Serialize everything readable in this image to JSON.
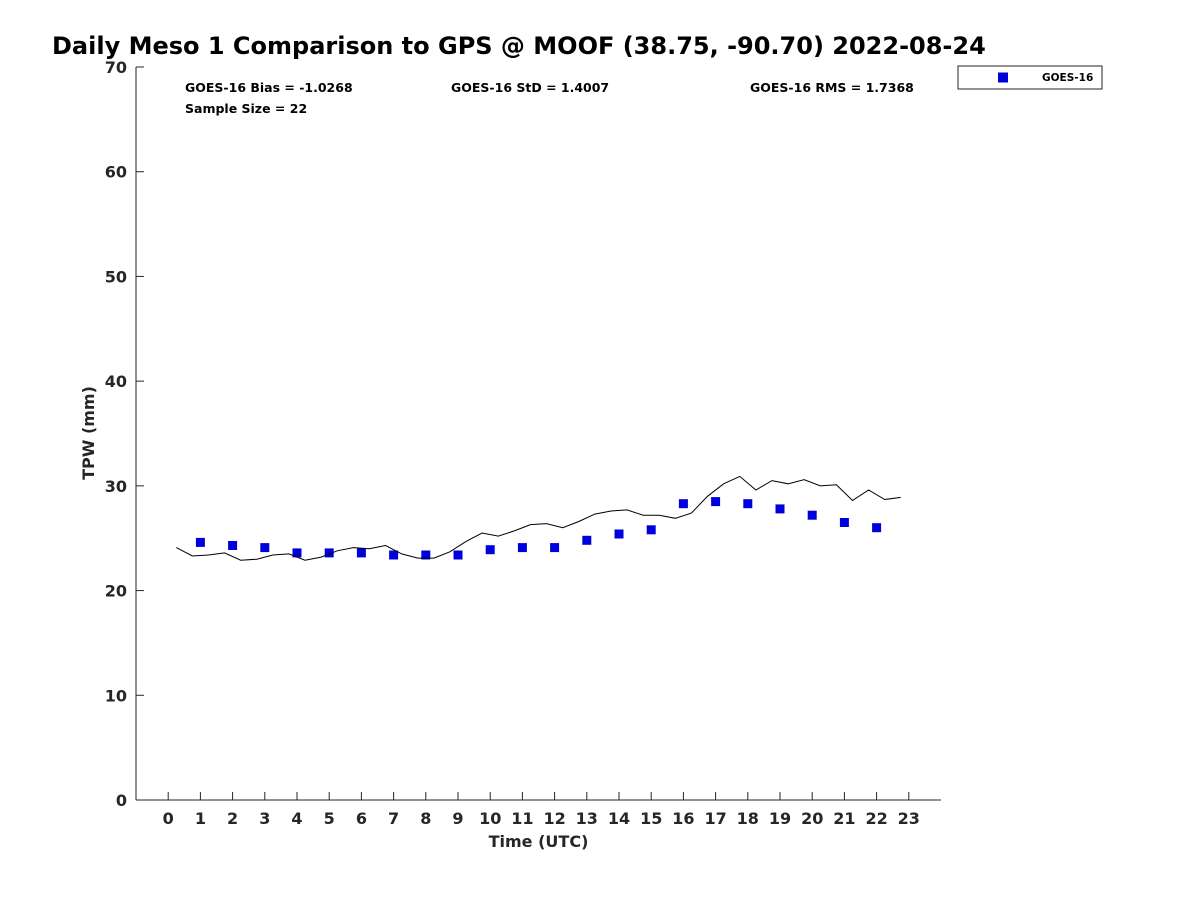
{
  "chart_data": {
    "type": "scatter",
    "title": "Daily Meso 1 Comparison to GPS @ MOOF (38.75, -90.70) 2022-08-24",
    "xlabel": "Time (UTC)",
    "ylabel": "TPW (mm)",
    "xlim": [
      -1,
      24
    ],
    "ylim": [
      0,
      70
    ],
    "xticks": [
      0,
      1,
      2,
      3,
      4,
      5,
      6,
      7,
      8,
      9,
      10,
      11,
      12,
      13,
      14,
      15,
      16,
      17,
      18,
      19,
      20,
      21,
      22,
      23
    ],
    "xtick_labels": [
      "0",
      "1",
      "2",
      "3",
      "4",
      "5",
      "6",
      "7",
      "8",
      "9",
      "10",
      "11",
      "12",
      "13",
      "14",
      "15",
      "16",
      "17",
      "18",
      "19",
      "20",
      "21",
      "22",
      "23"
    ],
    "yticks": [
      0,
      10,
      20,
      30,
      40,
      50,
      60,
      70
    ],
    "ytick_labels": [
      "0",
      "10",
      "20",
      "30",
      "40",
      "50",
      "60",
      "70"
    ],
    "grid": false,
    "legend_position": "top-right-outside",
    "annotations": {
      "bias": "GOES-16 Bias = -1.0268",
      "std": "GOES-16 StD = 1.4007",
      "rms": "GOES-16 RMS = 1.7368",
      "sample_size": "Sample Size = 22"
    },
    "series": [
      {
        "name": "GOES-16",
        "kind": "scatter",
        "marker": "square",
        "color": "#0000dd",
        "x": [
          1,
          2,
          3,
          4,
          5,
          6,
          7,
          8,
          9,
          10,
          11,
          12,
          13,
          14,
          15,
          16,
          17,
          18,
          19,
          20,
          21,
          22
        ],
        "y": [
          24.6,
          24.3,
          24.1,
          23.6,
          23.6,
          23.6,
          23.4,
          23.4,
          23.4,
          23.9,
          24.1,
          24.1,
          24.8,
          25.4,
          25.8,
          28.3,
          28.5,
          28.3,
          27.8,
          27.2,
          26.5,
          26.0
        ]
      },
      {
        "name": "",
        "kind": "line",
        "color": "#000000",
        "x": [
          0.25,
          0.75,
          1.25,
          1.75,
          2.25,
          2.75,
          3.25,
          3.75,
          4.25,
          4.75,
          5.25,
          5.75,
          6.25,
          6.75,
          7.25,
          7.75,
          8.25,
          8.75,
          9.25,
          9.75,
          10.25,
          10.75,
          11.25,
          11.75,
          12.25,
          12.75,
          13.25,
          13.75,
          14.25,
          14.75,
          15.25,
          15.75,
          16.25,
          16.75,
          17.25,
          17.75,
          18.25,
          18.75,
          19.25,
          19.75,
          20.25,
          20.75,
          21.25,
          21.75,
          22.25,
          22.75
        ],
        "y": [
          24.1,
          23.3,
          23.4,
          23.6,
          22.9,
          23.0,
          23.4,
          23.5,
          22.9,
          23.2,
          23.8,
          24.1,
          24.0,
          24.3,
          23.5,
          23.1,
          23.1,
          23.7,
          24.7,
          25.5,
          25.2,
          25.7,
          26.3,
          26.4,
          26.0,
          26.6,
          27.3,
          27.6,
          27.7,
          27.2,
          27.2,
          26.9,
          27.4,
          29.0,
          30.2,
          30.9,
          29.6,
          30.5,
          30.2,
          30.6,
          30.0,
          30.1,
          28.6,
          29.6,
          28.7,
          28.9
        ]
      }
    ]
  }
}
